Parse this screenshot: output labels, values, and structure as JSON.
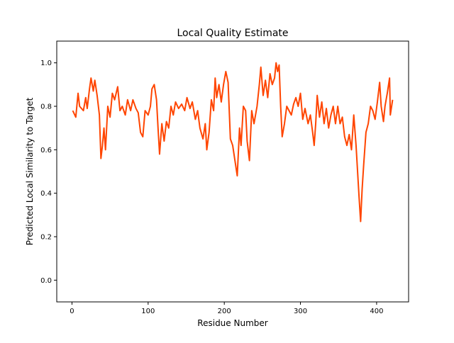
{
  "chart_data": {
    "type": "line",
    "title": "Local Quality Estimate",
    "x_label": "Residue Number",
    "y_label": "Predicted Local Similarity to Target",
    "color": "#ff4500",
    "xlim": [
      -20,
      442
    ],
    "ylim": [
      -0.1,
      1.1
    ],
    "xticks": [
      0,
      100,
      200,
      300,
      400
    ],
    "yticks": [
      {
        "value": 0,
        "label": "0.0"
      },
      0.2,
      0.4,
      0.6,
      0.8,
      {
        "value": 1,
        "label": "1.0"
      }
    ],
    "x": [
      1,
      5,
      8,
      10,
      15,
      18,
      20,
      23,
      25,
      28,
      30,
      33,
      36,
      38,
      40,
      42,
      44,
      47,
      50,
      53,
      56,
      60,
      63,
      66,
      70,
      73,
      77,
      80,
      84,
      87,
      90,
      93,
      96,
      100,
      103,
      105,
      108,
      111,
      113,
      115,
      118,
      121,
      124,
      127,
      130,
      133,
      136,
      140,
      144,
      148,
      151,
      155,
      158,
      162,
      165,
      168,
      172,
      175,
      177,
      180,
      183,
      186,
      188,
      190,
      193,
      196,
      199,
      202,
      205,
      208,
      211,
      214,
      217,
      220,
      222,
      225,
      228,
      230,
      233,
      236,
      239,
      243,
      246,
      248,
      251,
      254,
      257,
      260,
      263,
      266,
      268,
      270,
      272,
      274,
      276,
      279,
      282,
      285,
      288,
      291,
      294,
      297,
      300,
      303,
      306,
      310,
      313,
      316,
      318,
      320,
      322,
      325,
      328,
      331,
      334,
      337,
      340,
      343,
      346,
      349,
      352,
      355,
      358,
      361,
      364,
      367,
      370,
      373,
      375,
      377,
      379,
      381,
      383,
      386,
      389,
      392,
      395,
      398,
      401,
      404,
      406,
      409,
      411,
      414,
      417,
      418,
      421
    ],
    "values": [
      0.78,
      0.75,
      0.86,
      0.8,
      0.78,
      0.84,
      0.79,
      0.88,
      0.93,
      0.87,
      0.92,
      0.85,
      0.76,
      0.56,
      0.62,
      0.7,
      0.6,
      0.8,
      0.75,
      0.86,
      0.83,
      0.89,
      0.78,
      0.8,
      0.76,
      0.83,
      0.78,
      0.83,
      0.79,
      0.77,
      0.68,
      0.66,
      0.78,
      0.76,
      0.8,
      0.88,
      0.9,
      0.83,
      0.7,
      0.58,
      0.72,
      0.64,
      0.73,
      0.7,
      0.8,
      0.76,
      0.82,
      0.79,
      0.81,
      0.78,
      0.84,
      0.79,
      0.82,
      0.74,
      0.78,
      0.7,
      0.65,
      0.72,
      0.6,
      0.68,
      0.83,
      0.78,
      0.93,
      0.84,
      0.9,
      0.82,
      0.9,
      0.96,
      0.91,
      0.65,
      0.62,
      0.55,
      0.48,
      0.7,
      0.62,
      0.8,
      0.78,
      0.64,
      0.55,
      0.78,
      0.72,
      0.8,
      0.9,
      0.98,
      0.85,
      0.92,
      0.84,
      0.95,
      0.9,
      0.93,
      1.0,
      0.96,
      0.99,
      0.8,
      0.66,
      0.72,
      0.8,
      0.78,
      0.76,
      0.81,
      0.84,
      0.8,
      0.86,
      0.74,
      0.79,
      0.72,
      0.76,
      0.68,
      0.62,
      0.72,
      0.85,
      0.75,
      0.82,
      0.72,
      0.79,
      0.7,
      0.76,
      0.8,
      0.72,
      0.8,
      0.72,
      0.75,
      0.66,
      0.62,
      0.67,
      0.6,
      0.76,
      0.62,
      0.5,
      0.38,
      0.27,
      0.42,
      0.53,
      0.68,
      0.72,
      0.8,
      0.78,
      0.74,
      0.82,
      0.91,
      0.8,
      0.73,
      0.8,
      0.86,
      0.93,
      0.76,
      0.83
    ]
  }
}
